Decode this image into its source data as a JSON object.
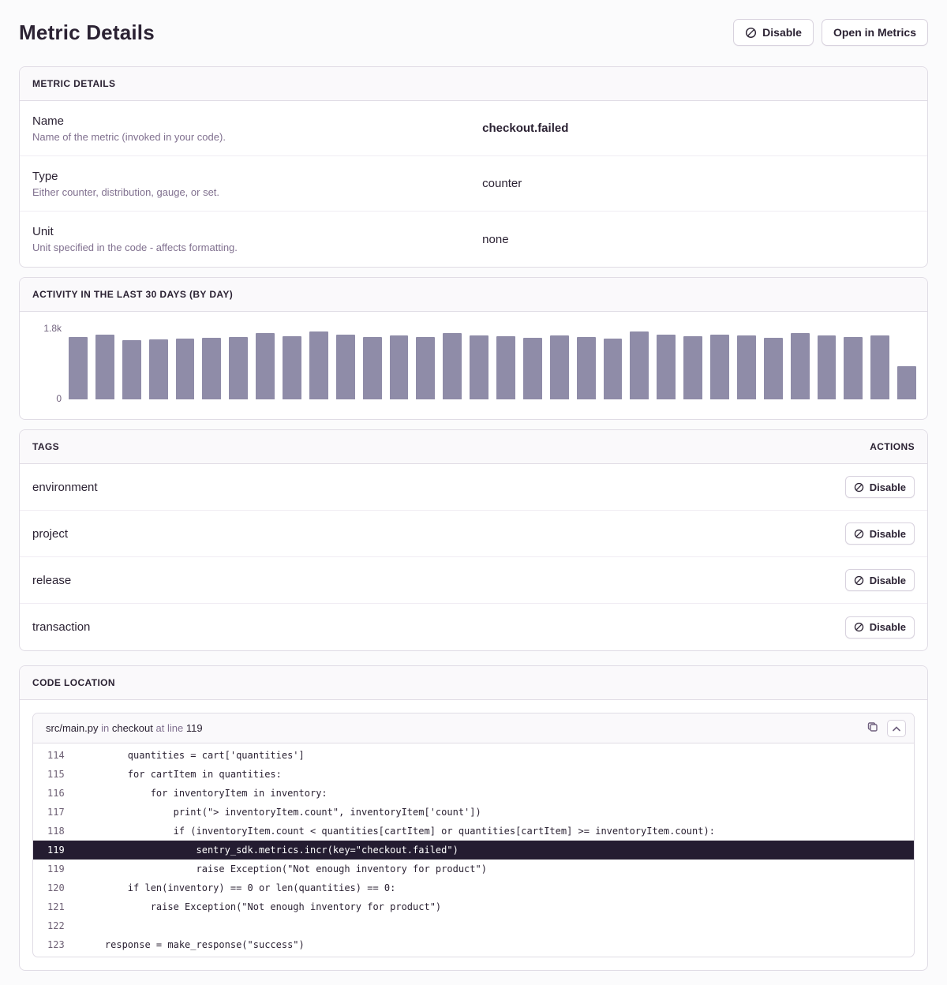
{
  "page": {
    "title": "Metric Details"
  },
  "header": {
    "disable_button": "Disable",
    "open_in_metrics_button": "Open in Metrics"
  },
  "details_panel": {
    "title": "METRIC DETAILS",
    "rows": [
      {
        "label": "Name",
        "description": "Name of the metric (invoked in your code).",
        "value": "checkout.failed"
      },
      {
        "label": "Type",
        "description": "Either counter, distribution, gauge, or set.",
        "value": "counter"
      },
      {
        "label": "Unit",
        "description": "Unit specified in the code - affects formatting.",
        "value": "none"
      }
    ]
  },
  "activity_panel": {
    "title": "ACTIVITY IN THE LAST 30 DAYS (BY DAY)"
  },
  "chart_data": {
    "type": "bar",
    "title": "ACTIVITY IN THE LAST 30 DAYS (BY DAY)",
    "xlabel": "",
    "ylabel": "",
    "ylim": [
      0,
      1800
    ],
    "y_tick_labels": [
      "0",
      "1.8k"
    ],
    "grid": false,
    "legend": false,
    "bar_color": "#8f8ca8",
    "values": [
      1560,
      1630,
      1490,
      1500,
      1520,
      1540,
      1570,
      1660,
      1590,
      1700,
      1620,
      1560,
      1610,
      1570,
      1670,
      1600,
      1580,
      1540,
      1600,
      1570,
      1520,
      1700,
      1630,
      1580,
      1620,
      1600,
      1550,
      1660,
      1610,
      1560,
      1610,
      840
    ]
  },
  "tags_panel": {
    "title": "TAGS",
    "actions_header": "ACTIONS",
    "disable_label": "Disable",
    "tags": [
      "environment",
      "project",
      "release",
      "transaction"
    ]
  },
  "code_panel": {
    "title": "CODE LOCATION",
    "file": "src/main.py",
    "in_word": "in",
    "function": "checkout",
    "at_line_word": "at line",
    "line_number": "119",
    "highlighted_index": 5,
    "lines": [
      {
        "num": "114",
        "code": "        quantities = cart['quantities']"
      },
      {
        "num": "115",
        "code": "        for cartItem in quantities:"
      },
      {
        "num": "116",
        "code": "            for inventoryItem in inventory:"
      },
      {
        "num": "117",
        "code": "                print(\"> inventoryItem.count\", inventoryItem['count'])"
      },
      {
        "num": "118",
        "code": "                if (inventoryItem.count < quantities[cartItem] or quantities[cartItem] >= inventoryItem.count):"
      },
      {
        "num": "119",
        "code": "                    sentry_sdk.metrics.incr(key=\"checkout.failed\")"
      },
      {
        "num": "119",
        "code": "                    raise Exception(\"Not enough inventory for product\")"
      },
      {
        "num": "120",
        "code": "        if len(inventory) == 0 or len(quantities) == 0:"
      },
      {
        "num": "121",
        "code": "            raise Exception(\"Not enough inventory for product\")"
      },
      {
        "num": "122",
        "code": ""
      },
      {
        "num": "123",
        "code": "    response = make_response(\"success\")"
      }
    ]
  }
}
